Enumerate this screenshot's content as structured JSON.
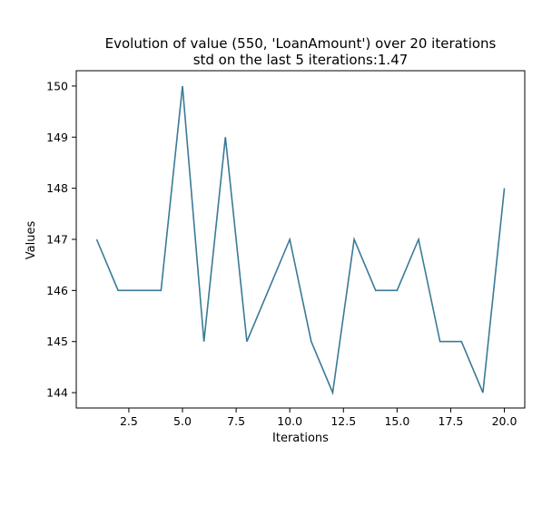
{
  "chart_data": {
    "type": "line",
    "title": "Evolution of value (550, 'LoanAmount') over 20 iterations",
    "subtitle": "std on the last 5 iterations:1.47",
    "xlabel": "Iterations",
    "ylabel": "Values",
    "xlim": [
      0.05,
      20.95
    ],
    "ylim": [
      143.7,
      150.3
    ],
    "xticks": [
      2.5,
      5.0,
      7.5,
      10.0,
      12.5,
      15.0,
      17.5,
      20.0
    ],
    "xtick_labels": [
      "2.5",
      "5.0",
      "7.5",
      "10.0",
      "12.5",
      "15.0",
      "17.5",
      "20.0"
    ],
    "yticks": [
      144,
      145,
      146,
      147,
      148,
      149,
      150
    ],
    "ytick_labels": [
      "144",
      "145",
      "146",
      "147",
      "148",
      "149",
      "150"
    ],
    "grid": false,
    "series": [
      {
        "x": [
          1,
          2,
          3,
          4,
          5,
          6,
          7,
          8,
          9,
          10,
          11,
          12,
          13,
          14,
          15,
          16,
          17,
          18,
          19,
          20
        ],
        "values": [
          147,
          146,
          146,
          146,
          150,
          145,
          149,
          145,
          146,
          147,
          145,
          144,
          147,
          146,
          146,
          147,
          145,
          145,
          144,
          148
        ],
        "color": "#3a7a96"
      }
    ]
  }
}
